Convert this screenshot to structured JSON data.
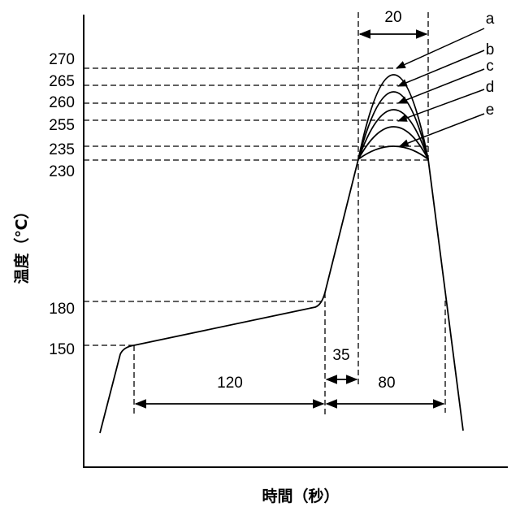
{
  "y_labels": [
    "270",
    "265",
    "260",
    "255",
    "235",
    "230",
    "180",
    "150"
  ],
  "dimensions": {
    "peak_time": "20",
    "preheat_time": "120",
    "ramp_time": "35",
    "reflow_time": "80"
  },
  "curve_labels": [
    "a",
    "b",
    "c",
    "d",
    "e"
  ],
  "axis": {
    "y_title": "温度（℃）",
    "x_title": "時間（秒）"
  }
}
